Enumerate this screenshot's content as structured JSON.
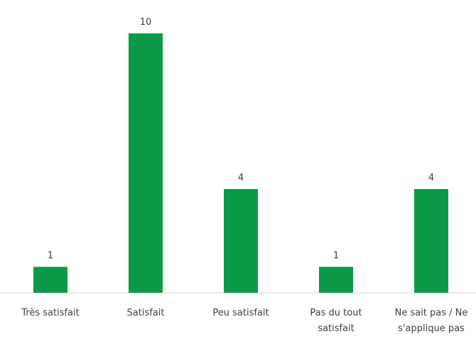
{
  "chart_data": {
    "type": "bar",
    "categories": [
      "Très satisfait",
      "Satisfait",
      "Peu satisfait",
      "Pas du tout satisfait",
      "Ne sait pas / Ne s'applique pas"
    ],
    "values": [
      1,
      10,
      4,
      1,
      4
    ],
    "color": "#0b9a48"
  }
}
